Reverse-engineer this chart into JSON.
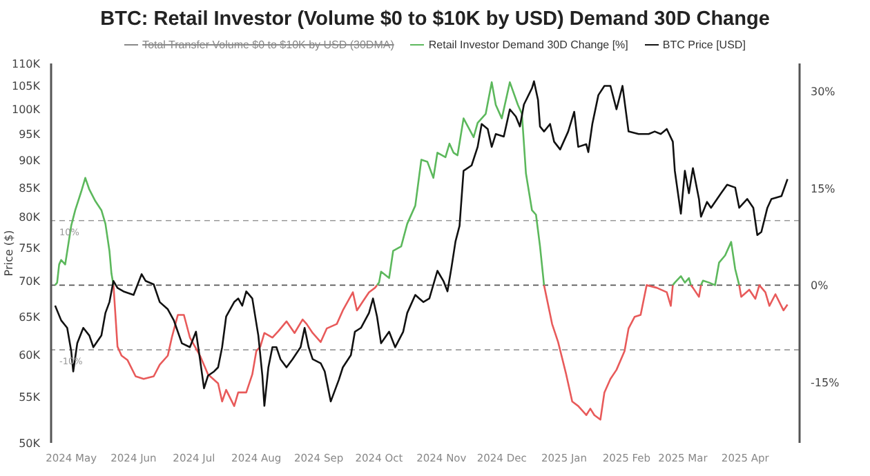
{
  "chart_data": {
    "type": "line",
    "title": "BTC: Retail Investor (Volume $0 to $10K by USD) Demand 30D Change",
    "ylabel": "Price ($)",
    "legend": "top",
    "log": "y",
    "xlim": [
      "2024-04-21",
      "2025-04-28"
    ],
    "xticks": [
      {
        "value": "2024-05-01",
        "label": "2024 May"
      },
      {
        "value": "2024-06-01",
        "label": "2024 Jun"
      },
      {
        "value": "2024-07-01",
        "label": "2024 Jul"
      },
      {
        "value": "2024-08-01",
        "label": "2024 Aug"
      },
      {
        "value": "2024-09-01",
        "label": "2024 Sep"
      },
      {
        "value": "2024-10-01",
        "label": "2024 Oct"
      },
      {
        "value": "2024-11-01",
        "label": "2024 Nov"
      },
      {
        "value": "2024-12-01",
        "label": "2024 Dec"
      },
      {
        "value": "2025-01-01",
        "label": "2025 Jan"
      },
      {
        "value": "2025-02-01",
        "label": "2025 Feb"
      },
      {
        "value": "2025-03-01",
        "label": "2025 Mar"
      },
      {
        "value": "2025-04-01",
        "label": "2025 Apr"
      }
    ],
    "ylim": [
      50000,
      110000
    ],
    "yticks": [
      {
        "value": 50000,
        "label": "50K"
      },
      {
        "value": 55000,
        "label": "55K"
      },
      {
        "value": 60000,
        "label": "60K"
      },
      {
        "value": 65000,
        "label": "65K"
      },
      {
        "value": 70000,
        "label": "70K"
      },
      {
        "value": 75000,
        "label": "75K"
      },
      {
        "value": 80000,
        "label": "80K"
      },
      {
        "value": 85000,
        "label": "85K"
      },
      {
        "value": 90000,
        "label": "90K"
      },
      {
        "value": 95000,
        "label": "95K"
      },
      {
        "value": 100000,
        "label": "100K"
      },
      {
        "value": 105000,
        "label": "105K"
      },
      {
        "value": 110000,
        "label": "110K"
      }
    ],
    "y2lim": [
      -24.4,
      34.3
    ],
    "y2ticks": [
      {
        "value": -15,
        "label": "-15%"
      },
      {
        "value": 0,
        "label": "0%"
      },
      {
        "value": 15,
        "label": "15%"
      },
      {
        "value": 30,
        "label": "30%"
      }
    ],
    "ref_lines": [
      {
        "axis": "y2",
        "value": 10,
        "label": "10%",
        "color": "#999999",
        "line_style": "dashed"
      },
      {
        "axis": "y2",
        "value": 0,
        "color": "#555555",
        "line_style": "dashed"
      },
      {
        "axis": "y2",
        "value": -10,
        "label": "-10%",
        "color": "#999999",
        "line_style": "dashed"
      }
    ],
    "series": [
      {
        "name": "Total Transfer Volume $0 to $10K by USD (30DMA)",
        "color": "#888888"
      },
      {
        "name": "Retail Investor Demand 30D Change [%]",
        "color": "#5cb85c",
        "axis": "y2",
        "x": [
          "2024-04-23",
          "2024-04-24",
          "2024-04-25",
          "2024-04-26",
          "2024-04-28",
          "2024-05-01",
          "2024-05-03",
          "2024-05-06",
          "2024-05-08",
          "2024-05-10",
          "2024-05-13",
          "2024-05-16",
          "2024-05-18",
          "2024-05-20",
          "2024-05-21",
          "2024-05-22",
          "2024-07-01",
          "2024-09-30",
          "2024-10-01",
          "2024-10-02",
          "2024-10-06",
          "2024-10-08",
          "2024-10-12",
          "2024-10-15",
          "2024-10-19",
          "2024-10-22",
          "2024-10-25",
          "2024-10-28",
          "2024-10-30",
          "2024-11-03",
          "2024-11-05",
          "2024-11-07",
          "2024-11-09",
          "2024-11-12",
          "2024-11-17",
          "2024-11-19",
          "2024-11-23",
          "2024-11-26",
          "2024-11-28",
          "2024-12-01",
          "2024-12-05",
          "2024-12-09",
          "2024-12-11",
          "2024-12-13",
          "2024-12-16",
          "2024-12-18",
          "2024-12-20",
          "2024-12-22",
          "2025-01-15",
          "2025-02-24",
          "2025-02-25",
          "2025-02-28",
          "2025-03-02",
          "2025-03-04",
          "2025-03-05",
          "2025-03-07",
          "2025-03-10",
          "2025-03-11",
          "2025-03-14",
          "2025-03-17",
          "2025-03-19",
          "2025-03-22",
          "2025-03-25",
          "2025-03-27",
          "2025-03-29"
        ],
        "values": [
          0,
          0.4,
          3.2,
          3.9,
          3.2,
          9.2,
          11.6,
          14.5,
          16.6,
          14.8,
          13,
          11.6,
          9.5,
          5.3,
          1.8,
          0,
          null,
          0,
          0.4,
          2.1,
          1.1,
          5.3,
          6,
          9.5,
          12.3,
          19.4,
          19.1,
          16.6,
          20.5,
          19.8,
          21.9,
          20.5,
          20.1,
          25.8,
          22.9,
          25.1,
          26.5,
          31.4,
          27.9,
          25.8,
          31.4,
          27.9,
          26.5,
          17.3,
          11.6,
          10.9,
          6,
          0,
          null,
          0,
          0.4,
          1.4,
          0.4,
          1.1,
          0,
          null,
          0,
          0.7,
          0.4,
          0,
          3.5,
          4.6,
          6.7,
          2.5,
          0
        ]
      },
      {
        "color": "#e85a5a",
        "axis": "y2",
        "x": [
          "2024-05-22",
          "2024-05-24",
          "2024-05-26",
          "2024-05-29",
          "2024-06-02",
          "2024-06-06",
          "2024-06-11",
          "2024-06-14",
          "2024-06-18",
          "2024-06-20",
          "2024-06-23",
          "2024-06-26",
          "2024-06-29",
          "2024-07-04",
          "2024-07-08",
          "2024-07-13",
          "2024-07-15",
          "2024-07-17",
          "2024-07-21",
          "2024-07-23",
          "2024-07-27",
          "2024-07-30",
          "2024-08-01",
          "2024-08-03",
          "2024-08-05",
          "2024-08-09",
          "2024-08-12",
          "2024-08-16",
          "2024-08-20",
          "2024-08-24",
          "2024-08-26",
          "2024-08-29",
          "2024-09-02",
          "2024-09-05",
          "2024-09-10",
          "2024-09-13",
          "2024-09-18",
          "2024-09-20",
          "2024-09-23",
          "2024-09-26",
          "2024-09-29",
          "2024-09-30",
          "2024-11-01",
          "2024-12-22",
          "2024-12-26",
          "2024-12-29",
          "2025-01-02",
          "2025-01-05",
          "2025-01-08",
          "2025-01-12",
          "2025-01-14",
          "2025-01-16",
          "2025-01-19",
          "2025-01-21",
          "2025-01-24",
          "2025-01-27",
          "2025-01-31",
          "2025-02-02",
          "2025-02-05",
          "2025-02-08",
          "2025-02-11",
          "2025-02-16",
          "2025-02-21",
          "2025-02-23",
          "2025-02-24",
          "2025-02-25",
          "2025-03-05",
          "2025-03-06",
          "2025-03-09",
          "2025-03-10",
          "2025-03-20",
          "2025-03-29",
          "2025-03-30",
          "2025-04-03",
          "2025-04-06",
          "2025-04-08",
          "2025-04-11",
          "2025-04-13",
          "2025-04-16",
          "2025-04-20",
          "2025-04-22"
        ],
        "values": [
          0,
          -9.5,
          -10.9,
          -11.6,
          -14.1,
          -14.5,
          -14.1,
          -12.3,
          -10.9,
          -8.1,
          -4.6,
          -4.6,
          -8.1,
          -10.9,
          -13.8,
          -15.2,
          -18,
          -16.2,
          -18.7,
          -16.6,
          -16.6,
          -13.8,
          -10.2,
          -9.5,
          -7.4,
          -8.1,
          -7.1,
          -5.6,
          -7.4,
          -5.3,
          -6,
          -7.4,
          -8.8,
          -6.7,
          -6,
          -3.9,
          -1.1,
          -3.9,
          -2.5,
          -1.1,
          -0.4,
          0,
          null,
          0,
          -6,
          -8.8,
          -13.8,
          -18,
          -18.7,
          -20.1,
          -19.1,
          -20.1,
          -20.8,
          -16.6,
          -14.5,
          -13.1,
          -10.2,
          -6.7,
          -4.9,
          -4.6,
          0,
          -0.4,
          -1.1,
          -3.2,
          0,
          null,
          0,
          -0.4,
          -1.8,
          0,
          null,
          0,
          -1.8,
          -0.7,
          -2.1,
          0,
          -1.1,
          -3.2,
          -1.4,
          -3.9,
          -3
        ]
      },
      {
        "name": "BTC Price [USD]",
        "color": "#111111",
        "x": [
          "2024-04-23",
          "2024-04-26",
          "2024-04-29",
          "2024-05-01",
          "2024-05-02",
          "2024-05-04",
          "2024-05-07",
          "2024-05-10",
          "2024-05-12",
          "2024-05-16",
          "2024-05-18",
          "2024-05-20",
          "2024-05-22",
          "2024-05-24",
          "2024-05-27",
          "2024-06-01",
          "2024-06-05",
          "2024-06-07",
          "2024-06-11",
          "2024-06-14",
          "2024-06-18",
          "2024-06-21",
          "2024-06-25",
          "2024-06-29",
          "2024-07-02",
          "2024-07-04",
          "2024-07-06",
          "2024-07-08",
          "2024-07-11",
          "2024-07-13",
          "2024-07-15",
          "2024-07-17",
          "2024-07-21",
          "2024-07-23",
          "2024-07-25",
          "2024-07-27",
          "2024-07-30",
          "2024-08-02",
          "2024-08-04",
          "2024-08-05",
          "2024-08-07",
          "2024-08-09",
          "2024-08-11",
          "2024-08-13",
          "2024-08-16",
          "2024-08-19",
          "2024-08-23",
          "2024-08-25",
          "2024-08-27",
          "2024-08-29",
          "2024-09-02",
          "2024-09-04",
          "2024-09-07",
          "2024-09-11",
          "2024-09-13",
          "2024-09-17",
          "2024-09-19",
          "2024-09-22",
          "2024-09-26",
          "2024-09-28",
          "2024-09-30",
          "2024-10-02",
          "2024-10-06",
          "2024-10-09",
          "2024-10-13",
          "2024-10-15",
          "2024-10-19",
          "2024-10-21",
          "2024-10-23",
          "2024-10-26",
          "2024-10-30",
          "2024-11-02",
          "2024-11-04",
          "2024-11-06",
          "2024-11-08",
          "2024-11-10",
          "2024-11-12",
          "2024-11-16",
          "2024-11-19",
          "2024-11-21",
          "2024-11-24",
          "2024-11-26",
          "2024-11-28",
          "2024-12-02",
          "2024-12-05",
          "2024-12-08",
          "2024-12-10",
          "2024-12-12",
          "2024-12-16",
          "2024-12-17",
          "2024-12-19",
          "2024-12-20",
          "2024-12-22",
          "2024-12-25",
          "2024-12-27",
          "2024-12-30",
          "2025-01-03",
          "2025-01-06",
          "2025-01-08",
          "2025-01-12",
          "2025-01-13",
          "2025-01-15",
          "2025-01-18",
          "2025-01-21",
          "2025-01-24",
          "2025-01-27",
          "2025-01-30",
          "2025-02-02",
          "2025-02-07",
          "2025-02-12",
          "2025-02-15",
          "2025-02-18",
          "2025-02-21",
          "2025-02-24",
          "2025-02-25",
          "2025-02-28",
          "2025-03-02",
          "2025-03-04",
          "2025-03-06",
          "2025-03-09",
          "2025-03-10",
          "2025-03-13",
          "2025-03-15",
          "2025-03-18",
          "2025-03-20",
          "2025-03-23",
          "2025-03-27",
          "2025-03-29",
          "2025-04-02",
          "2025-04-05",
          "2025-04-07",
          "2025-04-09",
          "2025-04-12",
          "2025-04-14",
          "2025-04-19",
          "2025-04-22"
        ],
        "values": [
          66500,
          64500,
          63500,
          60500,
          58000,
          61500,
          63500,
          62500,
          61000,
          62500,
          65500,
          67000,
          70000,
          69000,
          68500,
          68000,
          71000,
          70000,
          69500,
          67000,
          66000,
          64500,
          61500,
          61000,
          63000,
          59500,
          56000,
          57500,
          58000,
          58500,
          61000,
          65000,
          67000,
          67500,
          66500,
          68500,
          67500,
          62500,
          57500,
          54000,
          58500,
          61000,
          61000,
          59500,
          58500,
          59500,
          61000,
          63500,
          61000,
          59500,
          59000,
          58000,
          54500,
          57000,
          58500,
          60000,
          63000,
          63500,
          65500,
          67500,
          65000,
          61500,
          63000,
          61000,
          63000,
          65500,
          68000,
          67500,
          67000,
          67500,
          71500,
          70000,
          68500,
          72000,
          76000,
          78500,
          88000,
          89000,
          92500,
          97000,
          96000,
          92500,
          95000,
          94500,
          100000,
          98500,
          96500,
          101000,
          104500,
          106000,
          102000,
          96500,
          95500,
          97000,
          93500,
          92000,
          95500,
          99500,
          92500,
          93000,
          91500,
          97000,
          103000,
          105000,
          105000,
          100000,
          105000,
          95500,
          95000,
          95000,
          95500,
          95000,
          96000,
          93500,
          88000,
          80500,
          88000,
          84000,
          88500,
          83000,
          80000,
          82500,
          81500,
          83000,
          84000,
          85500,
          85000,
          81500,
          83000,
          81500,
          77000,
          77500,
          81500,
          83000,
          83500,
          86500
        ]
      }
    ]
  }
}
